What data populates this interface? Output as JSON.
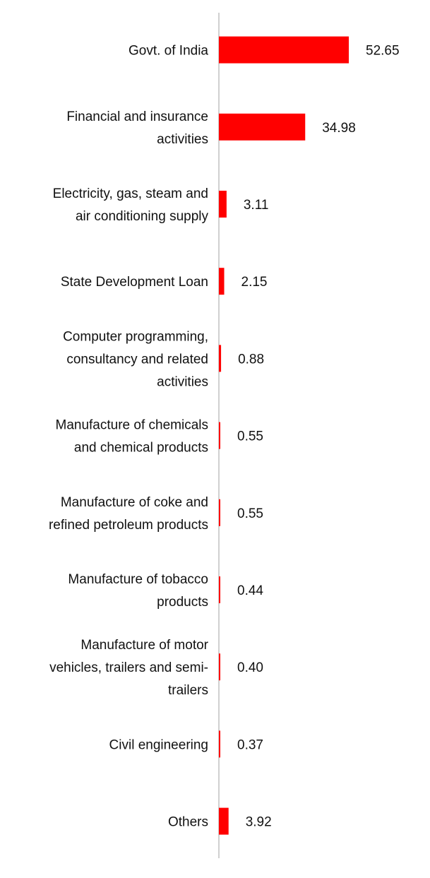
{
  "chart_data": {
    "type": "bar",
    "orientation": "horizontal",
    "title": "",
    "xlabel": "",
    "ylabel": "",
    "grid": false,
    "legend": "none",
    "bar_color": "#ff0000",
    "axis_color": "#d0d0d0",
    "xlim": [
      0,
      52.65
    ],
    "categories": [
      "Govt. of India",
      "Financial and insurance activities",
      "Electricity, gas, steam and air conditioning supply",
      "State Development Loan",
      "Computer programming, consultancy and related activities",
      "Manufacture of chemicals and chemical products",
      "Manufacture of coke and refined petroleum products",
      "Manufacture of tobacco products",
      "Manufacture of motor vehicles, trailers and semi-trailers",
      "Civil engineering",
      "Others"
    ],
    "category_lines": [
      [
        "Govt. of India"
      ],
      [
        "Financial and insurance",
        "activities"
      ],
      [
        "Electricity, gas, steam and",
        "air conditioning supply"
      ],
      [
        "State Development Loan"
      ],
      [
        "Computer programming,",
        "consultancy and related",
        "activities"
      ],
      [
        "Manufacture of chemicals",
        "and chemical products"
      ],
      [
        "Manufacture of coke and",
        "refined petroleum products"
      ],
      [
        "Manufacture of tobacco",
        "products"
      ],
      [
        "Manufacture of motor",
        "vehicles, trailers and semi-",
        "trailers"
      ],
      [
        "Civil engineering"
      ],
      [
        "Others"
      ]
    ],
    "values": [
      52.65,
      34.98,
      3.11,
      2.15,
      0.88,
      0.55,
      0.55,
      0.44,
      0.4,
      0.37,
      3.92
    ],
    "value_labels": [
      "52.65",
      "34.98",
      "3.11",
      "2.15",
      "0.88",
      "0.55",
      "0.55",
      "0.44",
      "0.40",
      "0.37",
      "3.92"
    ]
  }
}
